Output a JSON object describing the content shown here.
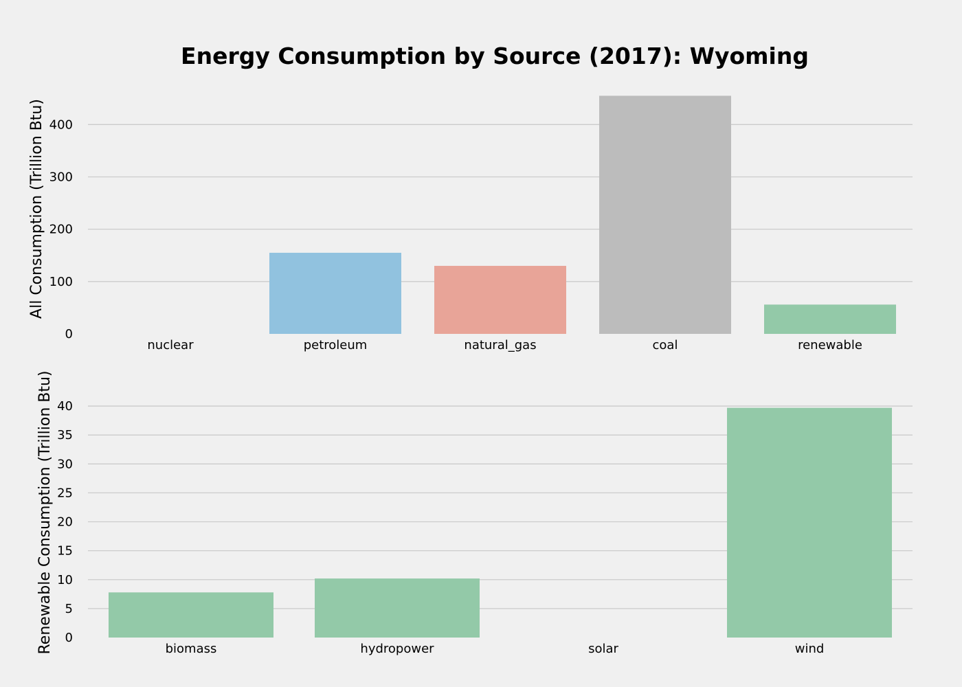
{
  "title": "Energy Consumption by Source (2017): Wyoming",
  "colors": {
    "background": "#f0f0f0",
    "grid": "#cbcbcb",
    "text": "#000000"
  },
  "chart_data": [
    {
      "type": "bar",
      "title": "",
      "ylabel": "All Consumption (Trillion Btu)",
      "xlabel": "",
      "categories": [
        "nuclear",
        "petroleum",
        "natural_gas",
        "coal",
        "renewable"
      ],
      "values": [
        0,
        155,
        130,
        455,
        56
      ],
      "colors": [
        "#30a2da",
        "#91c2df",
        "#e8a498",
        "#bcbcbc",
        "#93c9a8"
      ],
      "ylim": [
        0,
        470
      ],
      "yticks": [
        0,
        100,
        200,
        300,
        400
      ],
      "grid": true,
      "legend": "none"
    },
    {
      "type": "bar",
      "title": "",
      "ylabel": "Renewable Consumption (Trillion Btu)",
      "xlabel": "",
      "categories": [
        "biomass",
        "hydropower",
        "solar",
        "wind"
      ],
      "values": [
        7.8,
        10.2,
        0,
        39.7
      ],
      "colors": [
        "#93c9a8",
        "#93c9a8",
        "#93c9a8",
        "#93c9a8"
      ],
      "ylim": [
        0,
        42.5
      ],
      "yticks": [
        0,
        5,
        10,
        15,
        20,
        25,
        30,
        35,
        40
      ],
      "grid": true,
      "legend": "none"
    }
  ]
}
